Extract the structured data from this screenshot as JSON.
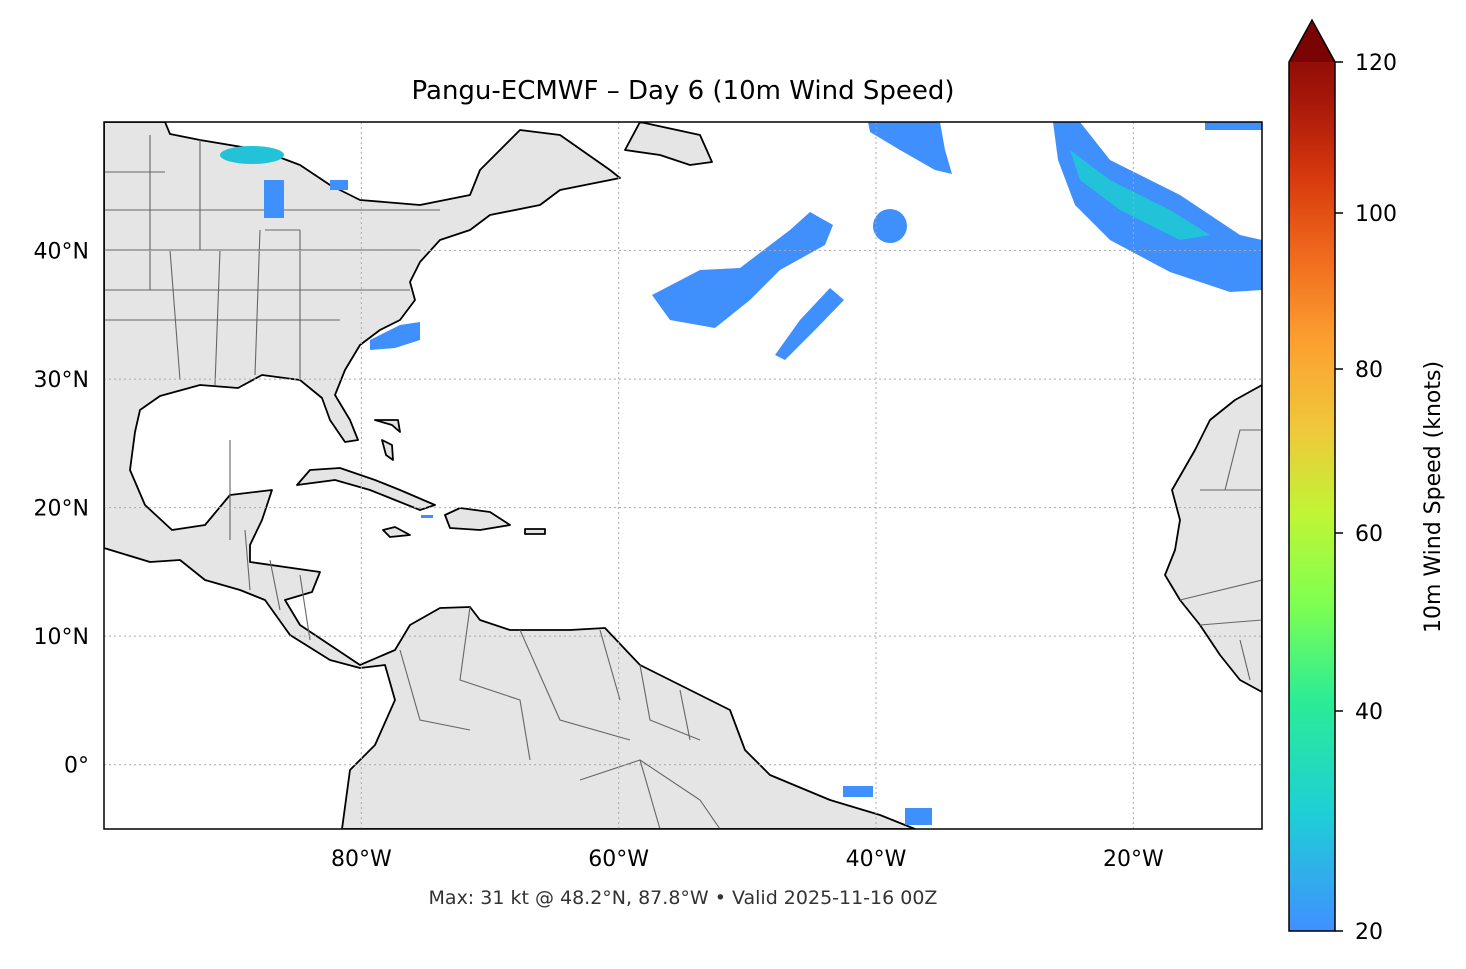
{
  "title": "Pangu-ECMWF – Day 6 (10m Wind Speed)",
  "footer": "Max: 31 kt @ 48.2°N, 87.8°W • Valid 2025-11-16 00Z",
  "map": {
    "extent_lon": [
      -100,
      -10
    ],
    "extent_lat": [
      -5,
      50
    ],
    "lon_ticks": [
      {
        "value": -80,
        "label": "80°W"
      },
      {
        "value": -60,
        "label": "60°W"
      },
      {
        "value": -40,
        "label": "40°W"
      },
      {
        "value": -20,
        "label": "20°W"
      }
    ],
    "lat_ticks": [
      {
        "value": 40,
        "label": "40°N"
      },
      {
        "value": 30,
        "label": "30°N"
      },
      {
        "value": 20,
        "label": "20°N"
      },
      {
        "value": 10,
        "label": "10°N"
      },
      {
        "value": 0,
        "label": "0°"
      }
    ],
    "gridlines": true,
    "land_color": "#e5e5e5",
    "max_point": {
      "speed_kt": 31,
      "lat": 48.2,
      "lon": -87.8
    }
  },
  "colorbar": {
    "label": "10m Wind Speed (knots)",
    "extend": "max",
    "ticks": [
      {
        "value": 120,
        "label": "120"
      },
      {
        "value": 100,
        "label": "100"
      },
      {
        "value": 80,
        "label": "80"
      },
      {
        "value": 60,
        "label": "60"
      },
      {
        "value": 40,
        "label": "40"
      },
      {
        "value": 20,
        "label": "20"
      }
    ],
    "range": [
      20,
      120
    ],
    "colors": {
      "low": "#4090ff",
      "c30": "#1ecfd5",
      "c40": "#2bec95",
      "c50": "#80ff50",
      "c60": "#c0f535",
      "c70": "#f0c83a",
      "c80": "#fca030",
      "c90": "#f06a1e",
      "c100": "#d83a0d",
      "c110": "#a8170a",
      "high": "#7a0403"
    }
  }
}
